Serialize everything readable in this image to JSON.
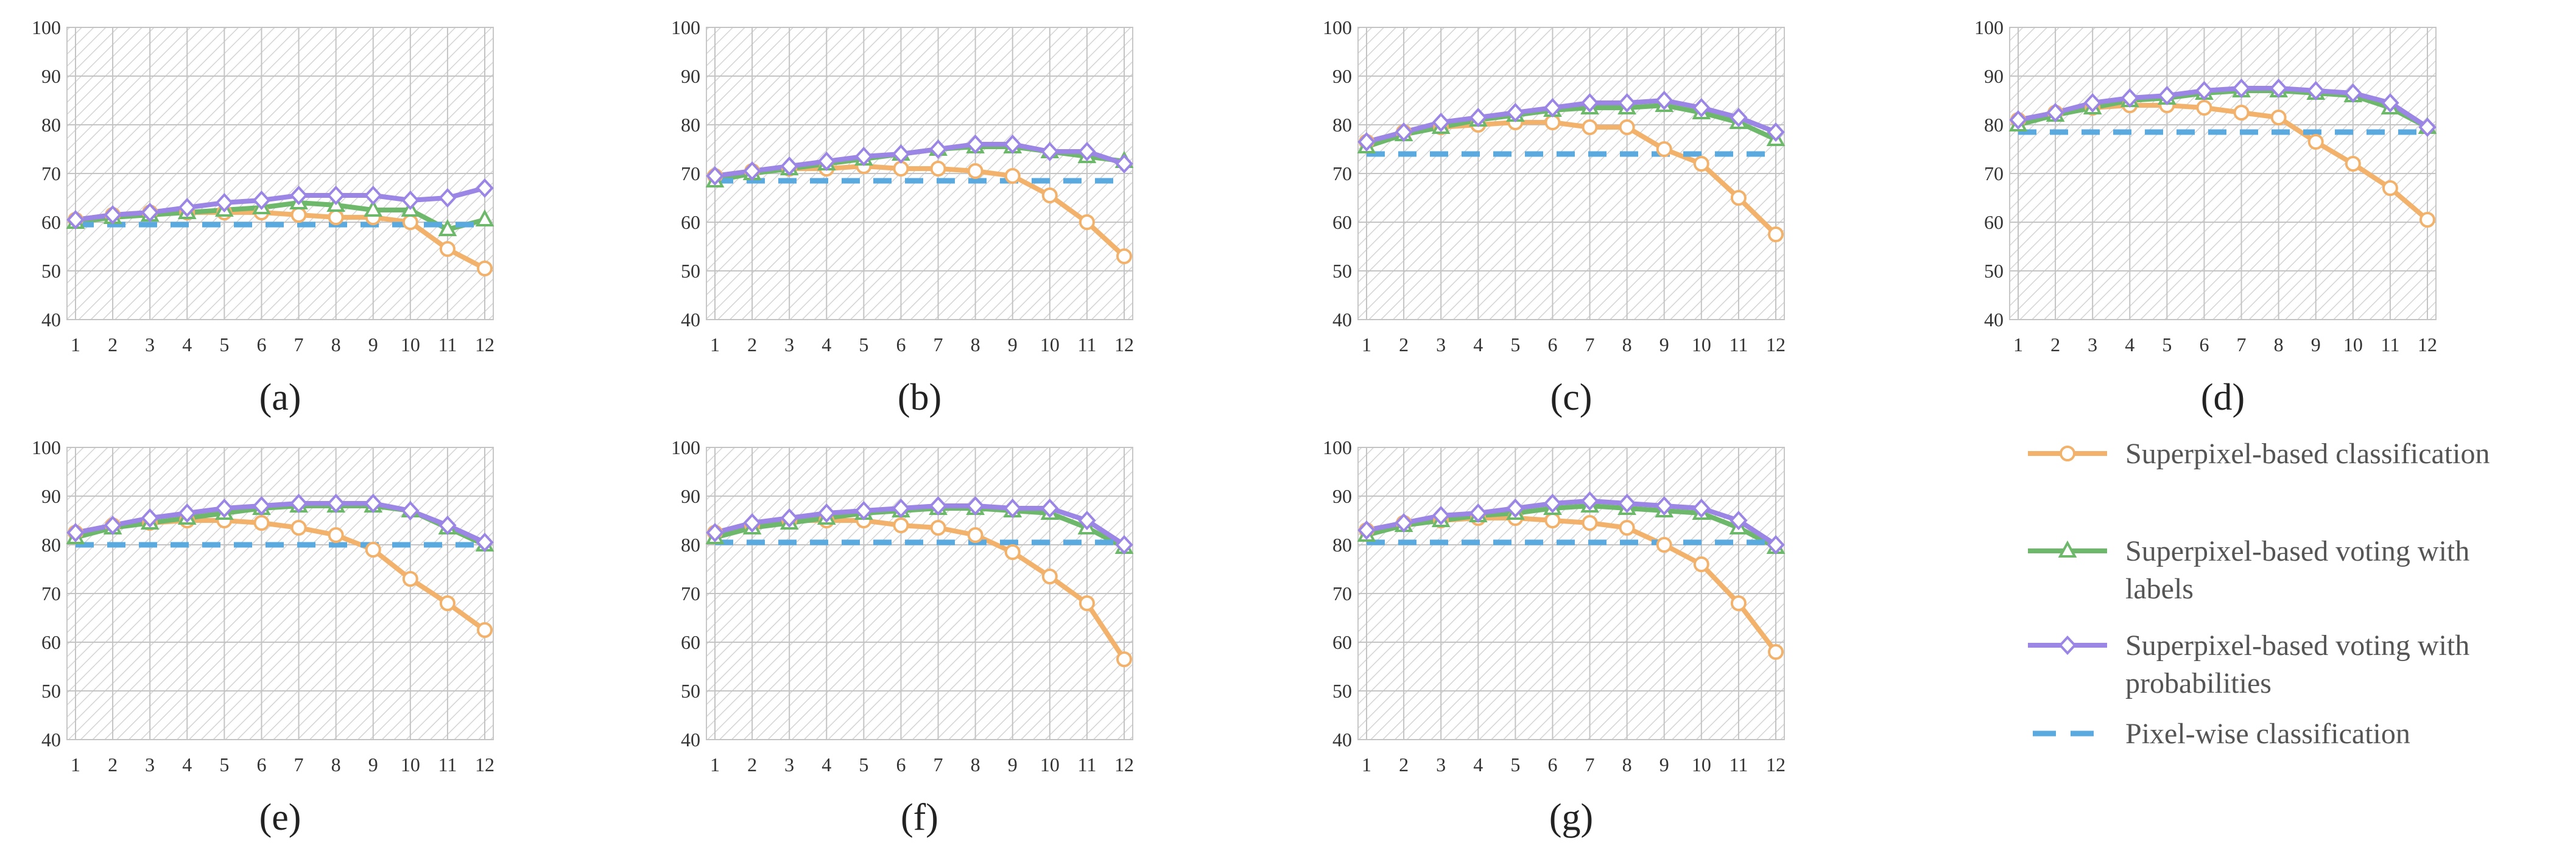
{
  "chart_data": {
    "type": "line",
    "x": [
      1,
      2,
      3,
      4,
      5,
      6,
      7,
      8,
      9,
      10,
      11,
      12
    ],
    "ylim": [
      40,
      100
    ],
    "yticks": [
      40,
      50,
      60,
      70,
      80,
      90,
      100
    ],
    "grid": true,
    "legend": {
      "placement": "bottom-right",
      "entries": [
        {
          "key": "classification",
          "text": "Superpixel-based classification"
        },
        {
          "key": "voting_labels",
          "text": "Superpixel-based voting with labels",
          "lines": [
            "Superpixel-based voting with",
            "labels"
          ]
        },
        {
          "key": "voting_prob",
          "text": "Superpixel-based voting with probabilities",
          "lines": [
            "Superpixel-based voting with",
            "probabilities"
          ]
        },
        {
          "key": "pixelwise",
          "text": "Pixel-wise classification"
        }
      ]
    },
    "series_style": {
      "classification": {
        "color": "#F2B26B",
        "marker": "circle"
      },
      "voting_labels": {
        "color": "#6DB86A",
        "marker": "triangle"
      },
      "voting_prob": {
        "color": "#9B86E6",
        "marker": "diamond"
      },
      "pixelwise": {
        "color": "#5AAAE0",
        "marker": "none",
        "dash": true
      }
    },
    "panels": [
      {
        "label": "(a)",
        "series": {
          "classification": [
            60.5,
            61.5,
            62,
            62,
            62,
            62,
            61.5,
            61,
            61,
            60,
            54.5,
            50.5
          ],
          "voting_labels": [
            60,
            61,
            61.5,
            62,
            62.5,
            63,
            64,
            63.5,
            62.5,
            62.5,
            58.5,
            60.5
          ],
          "voting_prob": [
            60.5,
            61.5,
            62,
            63,
            64,
            64.5,
            65.5,
            65.5,
            65.5,
            64.5,
            65,
            67
          ],
          "pixelwise": [
            59.5,
            59.5,
            59.5,
            59.5,
            59.5,
            59.5,
            59.5,
            59.5,
            59.5,
            59.5,
            59.5,
            59.5
          ]
        }
      },
      {
        "label": "(b)",
        "series": {
          "classification": [
            69.5,
            70.5,
            71,
            71,
            71.5,
            71,
            71,
            70.5,
            69.5,
            65.5,
            60,
            53
          ],
          "voting_labels": [
            68.5,
            70,
            71,
            72,
            73,
            74,
            75,
            75.5,
            75.5,
            74.5,
            73.5,
            72.5
          ],
          "voting_prob": [
            69.5,
            70.5,
            71.5,
            72.5,
            73.5,
            74,
            75,
            76,
            76,
            74.5,
            74.5,
            72
          ],
          "pixelwise": [
            68.5,
            68.5,
            68.5,
            68.5,
            68.5,
            68.5,
            68.5,
            68.5,
            68.5,
            68.5,
            68.5,
            68.5
          ]
        }
      },
      {
        "label": "(c)",
        "series": {
          "classification": [
            76.5,
            78.5,
            79.5,
            80,
            80.5,
            80.5,
            79.5,
            79.5,
            75,
            72,
            65,
            57.5
          ],
          "voting_labels": [
            75.5,
            78,
            79.5,
            81,
            82,
            83,
            83.5,
            83.5,
            84,
            82.5,
            80.5,
            77
          ],
          "voting_prob": [
            76.5,
            78.5,
            80.5,
            81.5,
            82.5,
            83.5,
            84.5,
            84.5,
            85,
            83.5,
            81.5,
            78.5
          ],
          "pixelwise": [
            74,
            74,
            74,
            74,
            74,
            74,
            74,
            74,
            74,
            74,
            74,
            74
          ]
        }
      },
      {
        "label": "(d)",
        "series": {
          "classification": [
            81,
            82.5,
            83.5,
            84,
            84,
            83.5,
            82.5,
            81.5,
            76.5,
            72,
            67,
            60.5
          ],
          "voting_labels": [
            80,
            82,
            83.5,
            85,
            85.5,
            86.5,
            87,
            87,
            86.5,
            86,
            83.5,
            79.5
          ],
          "voting_prob": [
            81,
            82.5,
            84.5,
            85.5,
            86,
            87,
            87.5,
            87.5,
            87,
            86.5,
            84.5,
            79.5
          ],
          "pixelwise": [
            78.5,
            78.5,
            78.5,
            78.5,
            78.5,
            78.5,
            78.5,
            78.5,
            78.5,
            78.5,
            78.5,
            78.5
          ]
        }
      },
      {
        "label": "(e)",
        "series": {
          "classification": [
            82.5,
            84,
            84.5,
            85,
            85,
            84.5,
            83.5,
            82,
            79,
            73,
            68,
            62.5
          ],
          "voting_labels": [
            81.5,
            83.5,
            84.5,
            85.5,
            86.5,
            87.5,
            88,
            88,
            88,
            87,
            83.5,
            80
          ],
          "voting_prob": [
            82.5,
            84,
            85.5,
            86.5,
            87.5,
            88,
            88.5,
            88.5,
            88.5,
            87,
            84,
            80.5
          ],
          "pixelwise": [
            80,
            80,
            80,
            80,
            80,
            80,
            80,
            80,
            80,
            80,
            80,
            80
          ]
        }
      },
      {
        "label": "(f)",
        "series": {
          "classification": [
            82.5,
            84,
            85,
            85,
            85,
            84,
            83.5,
            82,
            78.5,
            73.5,
            68,
            56.5
          ],
          "voting_labels": [
            81.5,
            83.5,
            84.5,
            85.5,
            86.5,
            87,
            87.5,
            87.5,
            87,
            86.5,
            83.5,
            79.5
          ],
          "voting_prob": [
            82.5,
            84.5,
            85.5,
            86.5,
            87,
            87.5,
            88,
            88,
            87.5,
            87.5,
            85,
            80
          ],
          "pixelwise": [
            80.5,
            80.5,
            80.5,
            80.5,
            80.5,
            80.5,
            80.5,
            80.5,
            80.5,
            80.5,
            80.5,
            80.5
          ]
        }
      },
      {
        "label": "(g)",
        "series": {
          "classification": [
            83,
            84.5,
            85,
            85.5,
            85.5,
            85,
            84.5,
            83.5,
            80,
            76,
            68,
            58
          ],
          "voting_labels": [
            82,
            84,
            85,
            86,
            86.5,
            87.5,
            88,
            87.5,
            87,
            86.5,
            83.5,
            79.5
          ],
          "voting_prob": [
            83,
            84.5,
            86,
            86.5,
            87.5,
            88.5,
            89,
            88.5,
            88,
            87.5,
            85,
            80
          ],
          "pixelwise": [
            80.5,
            80.5,
            80.5,
            80.5,
            80.5,
            80.5,
            80.5,
            80.5,
            80.5,
            80.5,
            80.5,
            80.5
          ]
        }
      }
    ]
  }
}
